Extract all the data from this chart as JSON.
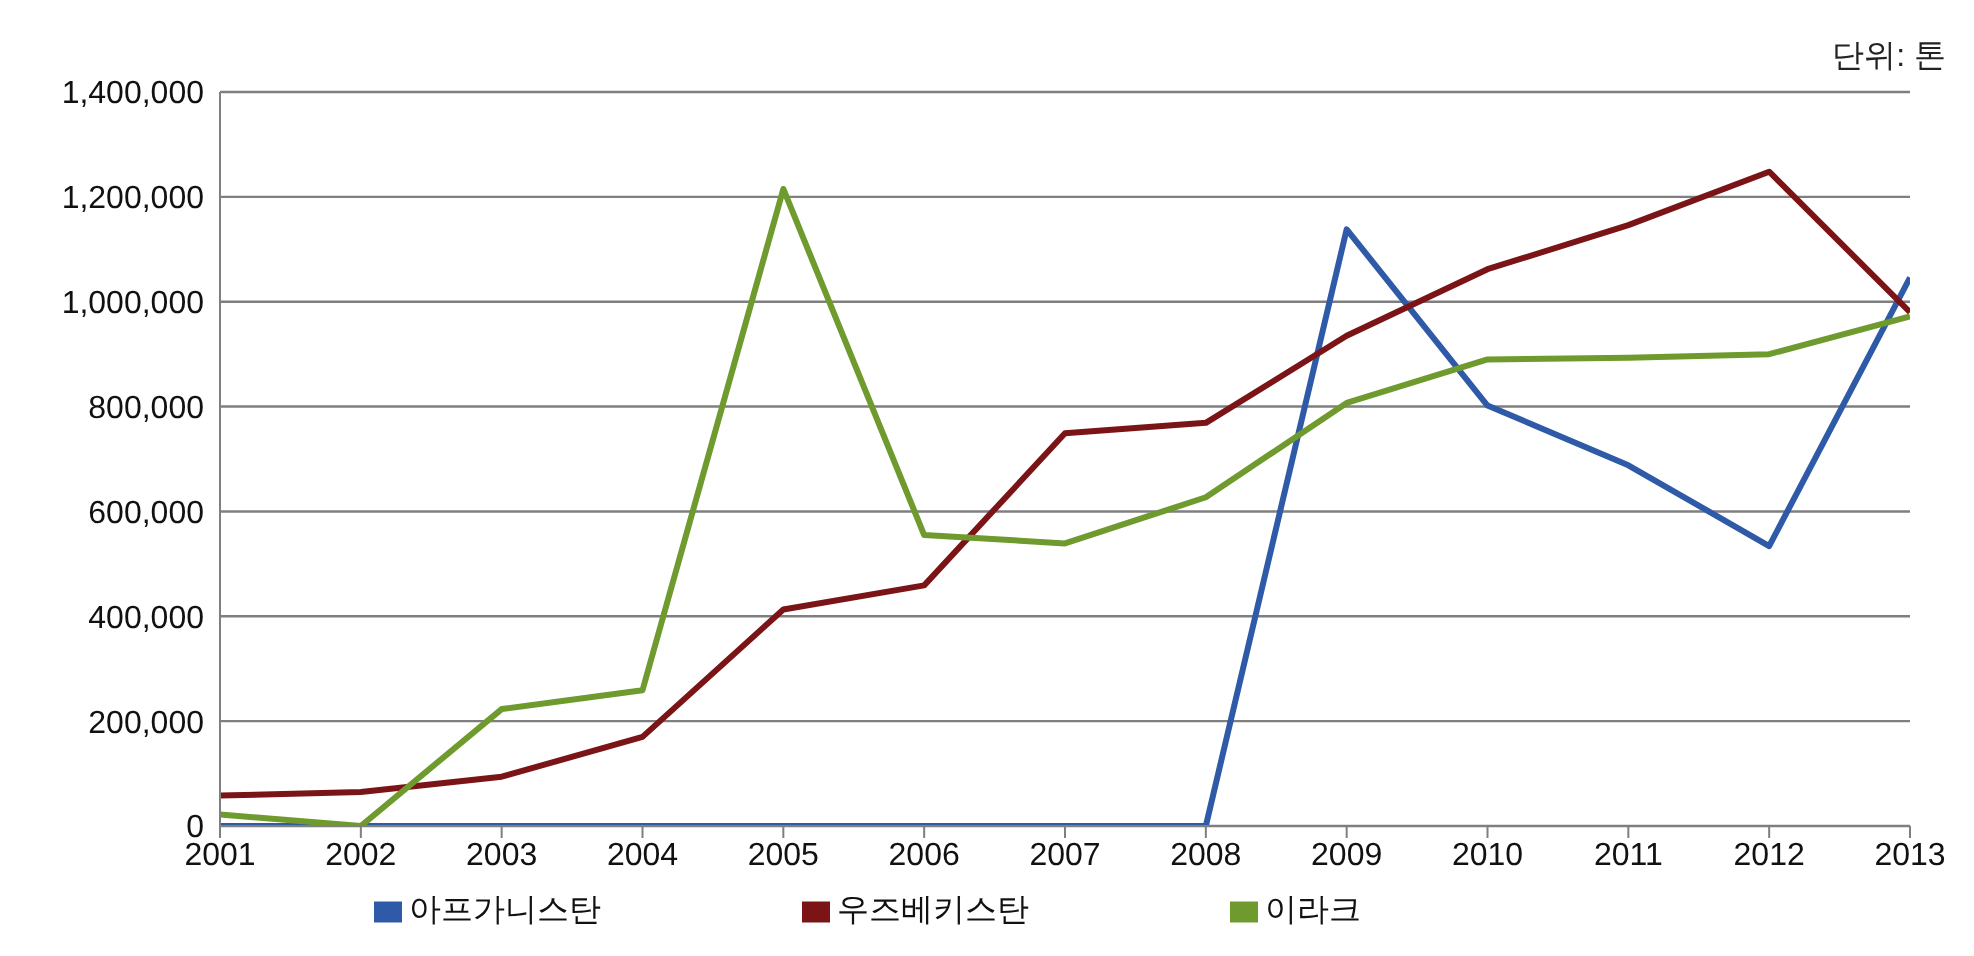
{
  "chart_data": {
    "type": "line",
    "annotations": [
      "단위: 톤"
    ],
    "categories": [
      "2001",
      "2002",
      "2003",
      "2004",
      "2005",
      "2006",
      "2007",
      "2008",
      "2009",
      "2010",
      "2011",
      "2012",
      "2013"
    ],
    "series": [
      {
        "name": "아프가니스탄",
        "color": "#2e5aa8",
        "values": [
          0,
          0,
          0,
          0,
          0,
          0,
          0,
          0,
          1138000,
          802000,
          688000,
          534000,
          1046000
        ]
      },
      {
        "name": "우즈베키스탄",
        "color": "#7b1416",
        "values": [
          58000,
          65000,
          94000,
          170000,
          413000,
          459000,
          749000,
          769000,
          935000,
          1062000,
          1146000,
          1248000,
          980000
        ]
      },
      {
        "name": "이라크",
        "color": "#6e9a2e",
        "values": [
          22000,
          0,
          223000,
          259000,
          1215000,
          555000,
          539000,
          627000,
          807000,
          890000,
          893000,
          900000,
          972000
        ]
      }
    ],
    "ylim": [
      0,
      1400000
    ],
    "yticks": [
      0,
      {
        "value": 200000,
        "label": "200,000"
      },
      {
        "value": 400000,
        "label": "400,000"
      },
      {
        "value": 600000,
        "label": "600,000"
      },
      {
        "value": 800000,
        "label": "800,000"
      },
      {
        "value": 1000000,
        "label": "1,000,000"
      },
      {
        "value": 1200000,
        "label": "1,200,000"
      },
      {
        "value": 1400000,
        "label": "1,400,000"
      }
    ],
    "grid": "y",
    "legend": "bottom",
    "marker": "none",
    "line_style": "solid"
  }
}
